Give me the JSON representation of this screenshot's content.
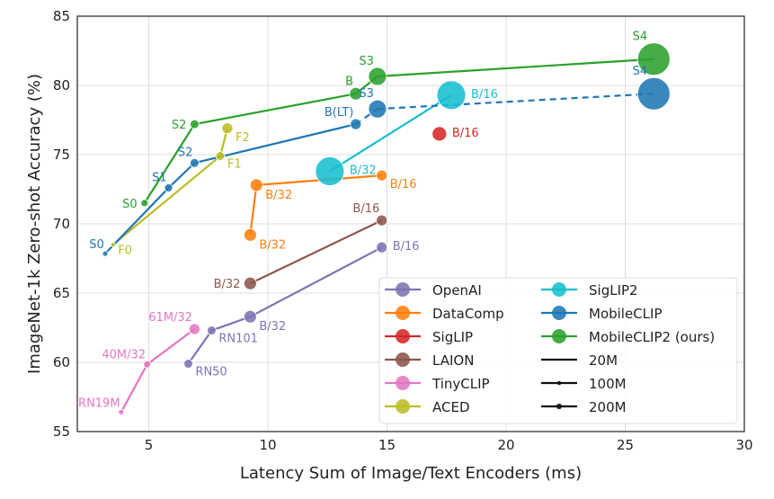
{
  "chart_data": {
    "type": "scatter",
    "xlabel": "Latency Sum of Image/Text Encoders (ms)",
    "ylabel": "ImageNet-1k Zero-shot Accuracy (%)",
    "xlim": [
      2,
      30
    ],
    "ylim": [
      55,
      85
    ],
    "xticks": [
      5,
      10,
      15,
      20,
      25,
      30
    ],
    "yticks": [
      55,
      60,
      65,
      70,
      75,
      80,
      85
    ],
    "grid": true,
    "legend_placement": "lower-right",
    "series": [
      {
        "name": "OpenAI",
        "color": "#8172b3",
        "points": [
          {
            "label": "RN50",
            "x": 6.66,
            "y": 59.9,
            "size_M": 120,
            "label_pos": "below-right"
          },
          {
            "label": "RN101",
            "x": 7.64,
            "y": 62.3,
            "size_M": 120,
            "label_pos": "below-right"
          },
          {
            "label": "B/32",
            "x": 9.26,
            "y": 63.3,
            "size_M": 240,
            "label_pos": "below-right"
          },
          {
            "label": "B/16",
            "x": 14.78,
            "y": 68.3,
            "size_M": 180,
            "label_pos": "right"
          }
        ]
      },
      {
        "name": "DataComp",
        "color": "#ff7f0e",
        "points": [
          {
            "label": "B/32",
            "x": 9.26,
            "y": 69.2,
            "size_M": 240,
            "label_pos": "below-right"
          },
          {
            "label": "B/32",
            "x": 9.52,
            "y": 72.8,
            "size_M": 240,
            "label_pos": "below-right"
          },
          {
            "label": "B/16",
            "x": 14.78,
            "y": 73.5,
            "size_M": 180,
            "label_pos": "below-right"
          }
        ]
      },
      {
        "name": "SigLIP",
        "color": "#d62728",
        "points": [
          {
            "label": "B/16",
            "x": 17.2,
            "y": 76.5,
            "size_M": 320,
            "label_pos": "right"
          }
        ]
      },
      {
        "name": "LAION",
        "color": "#8c564b",
        "points": [
          {
            "label": "B/32",
            "x": 9.26,
            "y": 65.7,
            "size_M": 240,
            "label_pos": "left"
          },
          {
            "label": "B/16",
            "x": 14.78,
            "y": 70.25,
            "size_M": 180,
            "label_pos": "above-left"
          }
        ]
      },
      {
        "name": "TinyCLIP",
        "color": "#e377c2",
        "points": [
          {
            "label": "RN19M",
            "x": 3.84,
            "y": 56.4,
            "size_M": 45,
            "label_pos": "above-left"
          },
          {
            "label": "40M/32",
            "x": 4.93,
            "y": 59.85,
            "size_M": 80,
            "label_pos": "above-left"
          },
          {
            "label": "61M/32",
            "x": 6.92,
            "y": 62.4,
            "size_M": 180,
            "label_pos": "above-left"
          }
        ]
      },
      {
        "name": "ACED",
        "color": "#bcbd22",
        "points": [
          {
            "label": "F0",
            "x": 3.5,
            "y": 68.5,
            "size_M": 30,
            "label_pos": "below-right"
          },
          {
            "label": "F1",
            "x": 8.0,
            "y": 74.9,
            "size_M": 120,
            "label_pos": "below-right"
          },
          {
            "label": "F2",
            "x": 8.3,
            "y": 76.9,
            "size_M": 180,
            "label_pos": "below-right"
          }
        ]
      },
      {
        "name": "SigLIP2",
        "color": "#17becf",
        "points": [
          {
            "label": "B/32",
            "x": 12.6,
            "y": 73.8,
            "size_M": 1260,
            "label_pos": "right"
          },
          {
            "label": "B/16",
            "x": 17.7,
            "y": 79.3,
            "size_M": 1260,
            "label_pos": "right"
          }
        ]
      },
      {
        "name": "MobileCLIP",
        "color": "#1f77b4",
        "dashed_after_index": 3,
        "points": [
          {
            "label": "S0",
            "x": 3.17,
            "y": 67.85,
            "size_M": 45,
            "label_pos": "above-left"
          },
          {
            "label": "S1",
            "x": 5.83,
            "y": 72.6,
            "size_M": 100,
            "label_pos": "above-left"
          },
          {
            "label": "S2",
            "x": 6.92,
            "y": 74.4,
            "size_M": 120,
            "label_pos": "above-left"
          },
          {
            "label": "B(LT)",
            "x": 13.69,
            "y": 77.2,
            "size_M": 180,
            "label_pos": "above-left"
          },
          {
            "label": "S3",
            "x": 14.6,
            "y": 78.3,
            "size_M": 490,
            "label_pos": "above-left"
          },
          {
            "label": "S4",
            "x": 26.2,
            "y": 79.4,
            "size_M": 1600,
            "label_pos": "above-left"
          }
        ]
      },
      {
        "name": "MobileCLIP2 (ours)",
        "color": "#2ca02c",
        "points": [
          {
            "label": "S0",
            "x": 4.82,
            "y": 71.5,
            "size_M": 80,
            "label_pos": "left"
          },
          {
            "label": "S2",
            "x": 6.92,
            "y": 77.2,
            "size_M": 120,
            "label_pos": "left"
          },
          {
            "label": "B",
            "x": 13.69,
            "y": 79.4,
            "size_M": 240,
            "label_pos": "above-left"
          },
          {
            "label": "S3",
            "x": 14.6,
            "y": 80.65,
            "size_M": 490,
            "label_pos": "above-left"
          },
          {
            "label": "S4",
            "x": 26.2,
            "y": 81.9,
            "size_M": 1600,
            "label_pos": "above-left"
          }
        ]
      }
    ],
    "size_legend": [
      {
        "label": "20M",
        "size_M": 20
      },
      {
        "label": "100M",
        "size_M": 100
      },
      {
        "label": "200M",
        "size_M": 200
      }
    ]
  }
}
